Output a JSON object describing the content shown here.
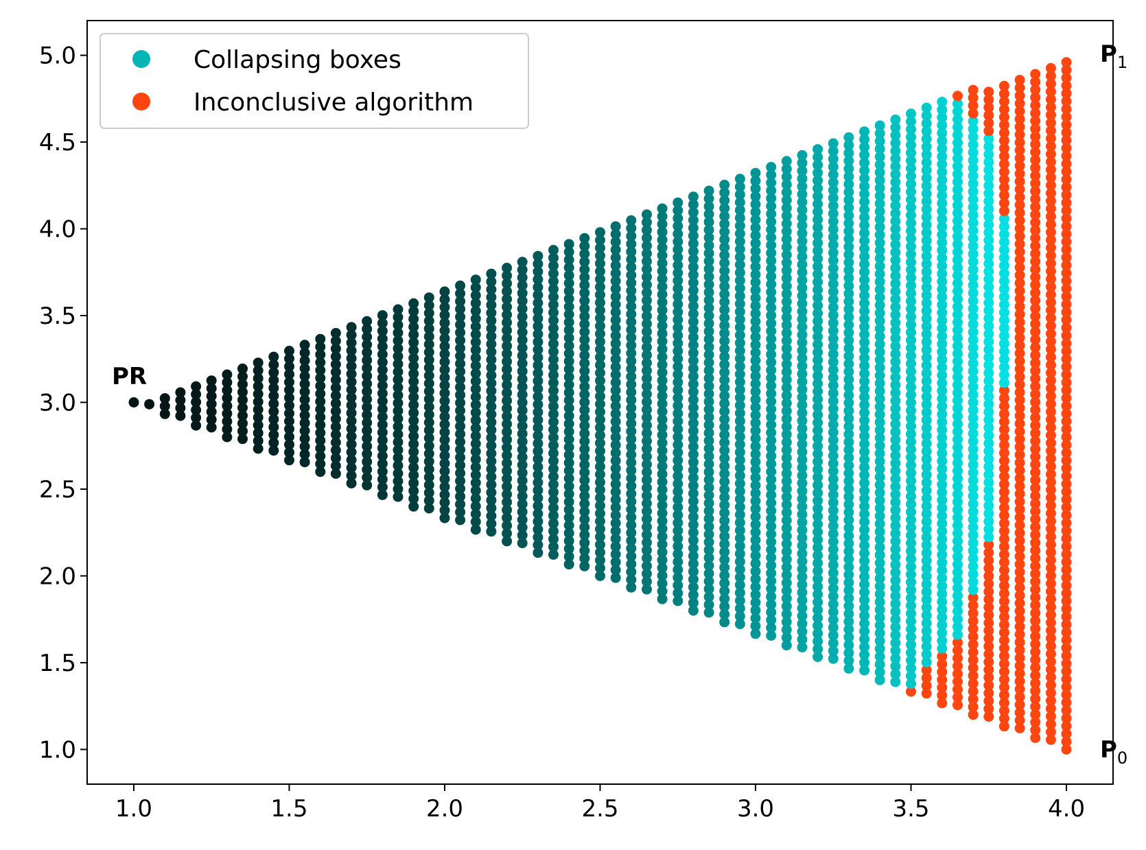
{
  "chart_data": {
    "type": "scatter",
    "title": "",
    "xlabel": "",
    "ylabel": "",
    "xlim": [
      0.85,
      4.15
    ],
    "ylim": [
      0.8,
      5.2
    ],
    "xticks": [
      "1.0",
      "1.5",
      "2.0",
      "2.5",
      "3.0",
      "3.5",
      "4.0"
    ],
    "yticks": [
      "1.0",
      "1.5",
      "2.0",
      "2.5",
      "3.0",
      "3.5",
      "4.0",
      "4.5",
      "5.0"
    ],
    "grid": false,
    "legend_position": "top-left",
    "legend": [
      {
        "label": "Collapsing boxes",
        "color": "#00b5b5"
      },
      {
        "label": "Inconclusive algorithm",
        "color": "#ff4510"
      }
    ],
    "annotations": [
      {
        "text": "PR",
        "x": 1.0,
        "y": 3.1
      },
      {
        "text": "P",
        "subscript": "1",
        "x": 4.15,
        "y": 5.0
      },
      {
        "text": "P",
        "subscript": "0",
        "x": 4.15,
        "y": 1.0
      }
    ],
    "grid_points": {
      "description": "Points on a lattice inside the triangle PR(1,3), P0(4,1), P1(4,5)",
      "x_start": 1.0,
      "x_end": 4.0,
      "x_step": 0.05,
      "y_step": 0.045,
      "collapsing_color_scale": [
        "#041414",
        "#00e0e0"
      ]
    },
    "inconclusive_region": {
      "color": "#ff4510",
      "columns": [
        {
          "x": 3.5,
          "y_below": 1.35
        },
        {
          "x": 3.55,
          "y_below": 1.46
        },
        {
          "x": 3.6,
          "y_below": 1.56
        },
        {
          "x": 3.6,
          "y_above": 4.76
        },
        {
          "x": 3.65,
          "y_below": 1.66
        },
        {
          "x": 3.65,
          "y_above": 4.74
        },
        {
          "x": 3.7,
          "y_below": 1.9
        },
        {
          "x": 3.7,
          "y_above": 4.64
        },
        {
          "x": 3.75,
          "y_below": 2.2
        },
        {
          "x": 3.75,
          "y_above": 4.52
        },
        {
          "x": 3.8,
          "y_below": 3.1
        },
        {
          "x": 3.8,
          "y_above": 4.1
        },
        {
          "x": 3.85,
          "all": true
        },
        {
          "x": 3.9,
          "all": true
        },
        {
          "x": 3.95,
          "all": true
        },
        {
          "x": 4.0,
          "all": true
        }
      ]
    }
  }
}
